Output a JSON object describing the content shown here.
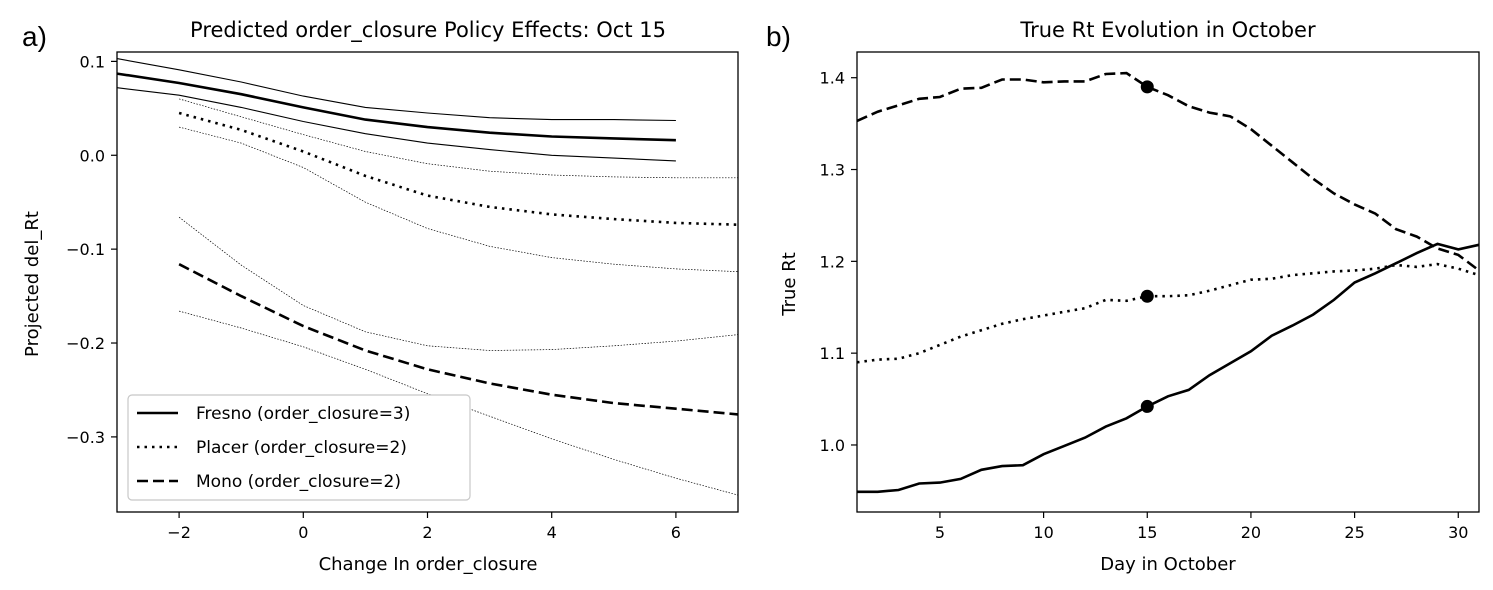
{
  "chart_data": [
    {
      "panel_label": "a)",
      "type": "line",
      "title": "Predicted order_closure Policy Effects: Oct 15",
      "xlabel": "Change In order_closure",
      "ylabel": "Projected del_Rt",
      "xlim": [
        -3,
        7
      ],
      "ylim": [
        -0.38,
        0.11
      ],
      "xticks": [
        -2,
        0,
        2,
        4,
        6
      ],
      "xtick_labels": [
        "−2",
        "0",
        "2",
        "4",
        "6"
      ],
      "yticks": [
        0.1,
        0.0,
        -0.1,
        -0.2,
        -0.3
      ],
      "ytick_labels": [
        "0.1",
        "0.0",
        "−0.1",
        "−0.2",
        "−0.3"
      ],
      "grid": false,
      "legend_position": "lower-left",
      "series": [
        {
          "name": "Fresno (order_closure=3)",
          "style": "solid",
          "x": [
            -3,
            -2,
            -1,
            0,
            1,
            2,
            3,
            4,
            5,
            6
          ],
          "y": [
            0.087,
            0.077,
            0.065,
            0.051,
            0.038,
            0.03,
            0.024,
            0.02,
            0.018,
            0.016
          ],
          "upper": [
            0.103,
            0.091,
            0.078,
            0.063,
            0.051,
            0.045,
            0.04,
            0.038,
            0.038,
            0.037
          ],
          "lower": [
            0.072,
            0.064,
            0.051,
            0.036,
            0.023,
            0.013,
            0.006,
            0.0,
            -0.003,
            -0.006
          ]
        },
        {
          "name": "Placer (order_closure=2)",
          "style": "dotted",
          "x": [
            -2,
            -1,
            0,
            1,
            2,
            3,
            4,
            5,
            6,
            7
          ],
          "y": [
            0.045,
            0.027,
            0.004,
            -0.022,
            -0.043,
            -0.055,
            -0.063,
            -0.068,
            -0.072,
            -0.074
          ],
          "upper": [
            0.06,
            0.041,
            0.022,
            0.004,
            -0.009,
            -0.017,
            -0.021,
            -0.023,
            -0.024,
            -0.024
          ],
          "lower": [
            0.03,
            0.013,
            -0.013,
            -0.05,
            -0.078,
            -0.097,
            -0.109,
            -0.116,
            -0.121,
            -0.124
          ]
        },
        {
          "name": "Mono (order_closure=2)",
          "style": "dashed",
          "x": [
            -2,
            -1,
            0,
            1,
            2,
            3,
            4,
            5,
            6,
            7
          ],
          "y": [
            -0.116,
            -0.15,
            -0.182,
            -0.208,
            -0.228,
            -0.243,
            -0.255,
            -0.264,
            -0.27,
            -0.276
          ],
          "upper": [
            -0.066,
            -0.117,
            -0.16,
            -0.188,
            -0.203,
            -0.208,
            -0.207,
            -0.203,
            -0.198,
            -0.191
          ],
          "lower": [
            -0.166,
            -0.184,
            -0.204,
            -0.228,
            -0.254,
            -0.278,
            -0.302,
            -0.324,
            -0.344,
            -0.362
          ]
        }
      ]
    },
    {
      "panel_label": "b)",
      "type": "line",
      "title": "True Rt Evolution in October",
      "xlabel": "Day in October",
      "ylabel": "True Rt",
      "xlim": [
        1,
        31
      ],
      "ylim": [
        0.927,
        1.428
      ],
      "xticks": [
        5,
        10,
        15,
        20,
        25,
        30
      ],
      "yticks": [
        1.0,
        1.1,
        1.2,
        1.3,
        1.4
      ],
      "ytick_labels": [
        "1.0",
        "1.1",
        "1.2",
        "1.3",
        "1.4"
      ],
      "grid": false,
      "markers": {
        "x": 15,
        "y": [
          1.39,
          1.162,
          1.042
        ]
      },
      "series": [
        {
          "style": "dashed",
          "x": [
            1,
            2,
            3,
            4,
            5,
            6,
            7,
            8,
            9,
            10,
            11,
            12,
            13,
            14,
            15,
            16,
            17,
            18,
            19,
            20,
            21,
            22,
            23,
            24,
            25,
            26,
            27,
            28,
            29,
            30,
            31
          ],
          "y": [
            1.353,
            1.363,
            1.37,
            1.377,
            1.379,
            1.388,
            1.389,
            1.398,
            1.398,
            1.395,
            1.396,
            1.396,
            1.404,
            1.405,
            1.39,
            1.381,
            1.369,
            1.362,
            1.358,
            1.344,
            1.326,
            1.308,
            1.29,
            1.274,
            1.262,
            1.252,
            1.235,
            1.227,
            1.214,
            1.207,
            1.19
          ]
        },
        {
          "style": "dotted",
          "x": [
            1,
            2,
            3,
            4,
            5,
            6,
            7,
            8,
            9,
            10,
            11,
            12,
            13,
            14,
            15,
            16,
            17,
            18,
            19,
            20,
            21,
            22,
            23,
            24,
            25,
            26,
            27,
            28,
            29,
            30,
            31
          ],
          "y": [
            1.09,
            1.093,
            1.094,
            1.1,
            1.109,
            1.118,
            1.125,
            1.132,
            1.137,
            1.141,
            1.145,
            1.149,
            1.158,
            1.157,
            1.162,
            1.162,
            1.163,
            1.168,
            1.174,
            1.18,
            1.181,
            1.185,
            1.187,
            1.189,
            1.19,
            1.192,
            1.196,
            1.194,
            1.197,
            1.192,
            1.185
          ]
        },
        {
          "style": "solid",
          "x": [
            1,
            2,
            3,
            4,
            5,
            6,
            7,
            8,
            9,
            10,
            11,
            12,
            13,
            14,
            15,
            16,
            17,
            18,
            19,
            20,
            21,
            22,
            23,
            24,
            25,
            26,
            27,
            28,
            29,
            30,
            31
          ],
          "y": [
            0.949,
            0.949,
            0.951,
            0.958,
            0.959,
            0.963,
            0.973,
            0.977,
            0.978,
            0.99,
            0.999,
            1.008,
            1.02,
            1.029,
            1.042,
            1.053,
            1.06,
            1.076,
            1.089,
            1.102,
            1.119,
            1.13,
            1.142,
            1.158,
            1.177,
            1.187,
            1.198,
            1.209,
            1.219,
            1.213,
            1.218
          ]
        }
      ]
    }
  ]
}
